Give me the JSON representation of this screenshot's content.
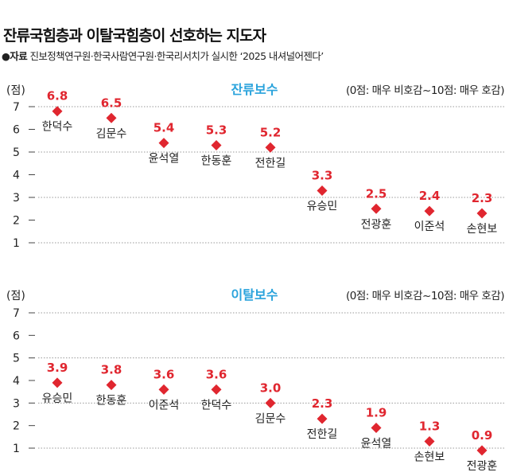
{
  "title": "잔류국힘층과 이탈국힘층이 선호하는 지도자",
  "source": {
    "label": "●자료",
    "text": "진보정책연구원·한국사람연구원·한국리서치가 실시한 ‘2025 내셔널어젠다’"
  },
  "colors": {
    "marker": "#e0262f",
    "value_label": "#e0262f",
    "panel_title": "#2aa3dc",
    "grid": "#999999"
  },
  "chart_data": [
    {
      "type": "scatter",
      "title": "잔류보수",
      "ylabel": "(점)",
      "note": "(0점: 매우 비호감~10점: 매우 호감)",
      "ylim": [
        1,
        7
      ],
      "yticks": [
        "1",
        "2",
        "3",
        "4",
        "5",
        "6",
        "7"
      ],
      "grid": "dotted at 1,3,5,7",
      "categories": [
        "한덕수",
        "김문수",
        "윤석열",
        "한동훈",
        "전한길",
        "유승민",
        "전광훈",
        "이준석",
        "손현보"
      ],
      "values": [
        6.8,
        6.5,
        5.4,
        5.3,
        5.2,
        3.3,
        2.5,
        2.4,
        2.3
      ],
      "value_labels": [
        "6.8",
        "6.5",
        "5.4",
        "5.3",
        "5.2",
        "3.3",
        "2.5",
        "2.4",
        "2.3"
      ]
    },
    {
      "type": "scatter",
      "title": "이탈보수",
      "ylabel": "(점)",
      "note": "(0점: 매우 비호감~10점: 매우 호감)",
      "ylim": [
        1,
        7
      ],
      "yticks": [
        "1",
        "2",
        "3",
        "4",
        "5",
        "6",
        "7"
      ],
      "grid": "dotted at 1,3,5,7",
      "categories": [
        "유승민",
        "한동훈",
        "이준석",
        "한덕수",
        "김문수",
        "전한길",
        "윤석열",
        "손현보",
        "전광훈"
      ],
      "values": [
        3.9,
        3.8,
        3.6,
        3.6,
        3.0,
        2.3,
        1.9,
        1.3,
        0.9
      ],
      "value_labels": [
        "3.9",
        "3.8",
        "3.6",
        "3.6",
        "3.0",
        "2.3",
        "1.9",
        "1.3",
        "0.9"
      ]
    }
  ]
}
